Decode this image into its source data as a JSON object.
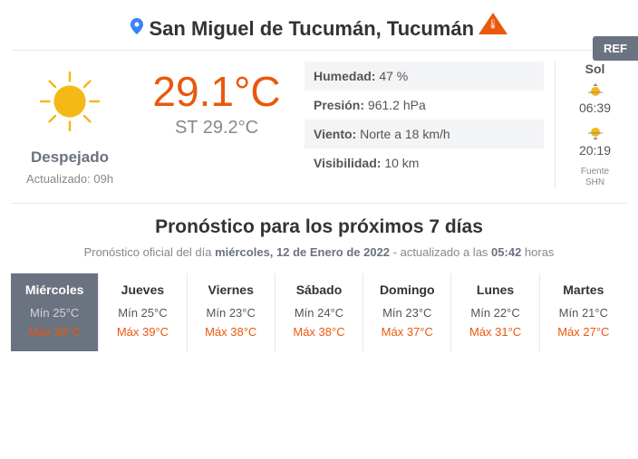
{
  "header": {
    "location": "San Miguel de Tucumán, Tucumán",
    "ref_label": "REF"
  },
  "alert": {
    "color": "#ea580c"
  },
  "current": {
    "temp": "29.1°C",
    "st_temp": "ST 29.2°C",
    "condition": "Despejado",
    "updated": "Actualizado: 09h",
    "sun_color": "#f5b817",
    "accent_color": "#ea580c"
  },
  "stats": {
    "humidity_label": "Humedad:",
    "humidity_value": " 47 %",
    "pressure_label": "Presión:",
    "pressure_value": " 961.2 hPa",
    "wind_label": "Viento:",
    "wind_value": " Norte a 18 km/h",
    "visibility_label": "Visibilidad:",
    "visibility_value": " 10 km"
  },
  "sun": {
    "title": "Sol",
    "sunrise": "06:39",
    "sunset": "20:19",
    "source_label": "Fuente",
    "source_name": "SHN"
  },
  "forecast": {
    "title": "Pronóstico para los próximos 7 días",
    "sub_prefix": "Pronóstico oficial del día ",
    "sub_date": "miércoles, 12 de Enero de 2022",
    "sub_middle": " - actualizado a las ",
    "sub_time": "05:42",
    "sub_suffix": " horas",
    "days": [
      {
        "name": "Miércoles",
        "min": "Mín 25°C",
        "max": "Máx 39°C",
        "active": true
      },
      {
        "name": "Jueves",
        "min": "Mín 25°C",
        "max": "Máx 39°C",
        "active": false
      },
      {
        "name": "Viernes",
        "min": "Mín 23°C",
        "max": "Máx 38°C",
        "active": false
      },
      {
        "name": "Sábado",
        "min": "Mín 24°C",
        "max": "Máx 38°C",
        "active": false
      },
      {
        "name": "Domingo",
        "min": "Mín 23°C",
        "max": "Máx 37°C",
        "active": false
      },
      {
        "name": "Lunes",
        "min": "Mín 22°C",
        "max": "Máx 31°C",
        "active": false
      },
      {
        "name": "Martes",
        "min": "Mín 21°C",
        "max": "Máx 27°C",
        "active": false
      }
    ]
  },
  "colors": {
    "accent": "#ea580c",
    "gray_text": "#6b7280",
    "light_gray": "#888888",
    "row_bg": "#f3f4f6",
    "border": "#e5e7eb",
    "active_bg": "#6b7280"
  }
}
